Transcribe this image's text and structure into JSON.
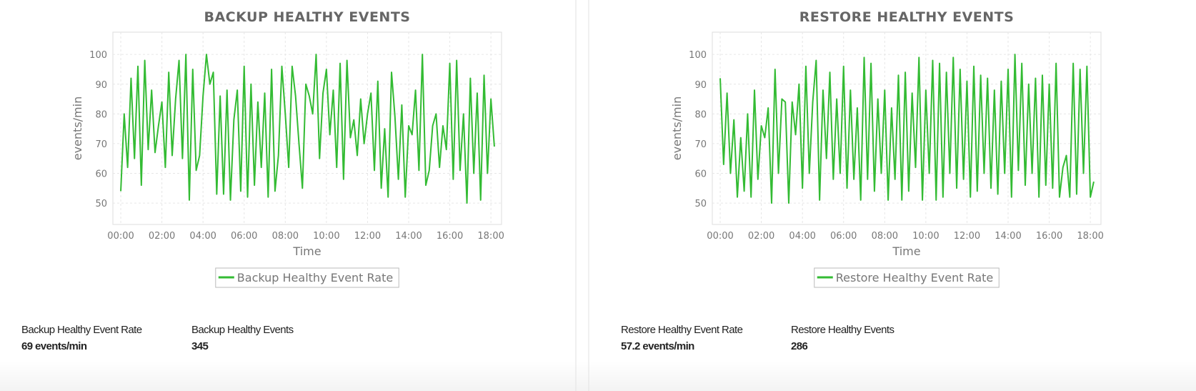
{
  "chart_data": [
    {
      "type": "line",
      "title": "BACKUP HEALTHY EVENTS",
      "xlabel": "Time",
      "ylabel": "events/min",
      "x": [
        0,
        10,
        20,
        30,
        40,
        50,
        60,
        70,
        80,
        90,
        100,
        110,
        120,
        130,
        140,
        150,
        160,
        170,
        180,
        190,
        200,
        210,
        220,
        230,
        240,
        250,
        260,
        270,
        280,
        290,
        300,
        310,
        320,
        330,
        340,
        350,
        360,
        370,
        380,
        390,
        400,
        410,
        420,
        430,
        440,
        450,
        460,
        470,
        480,
        490,
        500,
        510,
        520,
        530,
        540,
        550,
        560,
        570,
        580,
        590,
        600,
        610,
        620,
        630,
        640,
        650,
        660,
        670,
        680,
        690,
        700,
        710,
        720,
        730,
        740,
        750,
        760,
        770,
        780,
        790,
        800,
        810,
        820,
        830,
        840,
        850,
        860,
        870,
        880,
        890,
        900,
        910,
        920,
        930,
        940,
        950,
        960,
        970,
        980,
        990,
        1000,
        1010,
        1020,
        1030,
        1040,
        1050,
        1060,
        1070,
        1080,
        1090
      ],
      "series": [
        {
          "name": "Backup Healthy Event Rate",
          "color": "#33bb33",
          "values": [
            54,
            80,
            62,
            92,
            65,
            96,
            56,
            98,
            68,
            88,
            67,
            76,
            84,
            62,
            94,
            66,
            85,
            98,
            65,
            100,
            51,
            95,
            61,
            66,
            86,
            100,
            90,
            94,
            53,
            86,
            53,
            88,
            51,
            78,
            88,
            54,
            96,
            52,
            90,
            56,
            84,
            62,
            87,
            52,
            95,
            54,
            66,
            96,
            80,
            62,
            96,
            86,
            70,
            55,
            90,
            86,
            80,
            100,
            65,
            87,
            95,
            73,
            88,
            62,
            97,
            58,
            98,
            72,
            78,
            66,
            85,
            70,
            80,
            87,
            61,
            91,
            55,
            75,
            52,
            94,
            79,
            58,
            83,
            52,
            76,
            73,
            88,
            61,
            100,
            56,
            61,
            76,
            80,
            62,
            76,
            68,
            97,
            58,
            98,
            61,
            80,
            50,
            92,
            60,
            87,
            51,
            93,
            60,
            85,
            69
          ]
        }
      ],
      "xlim": [
        -23,
        1111
      ],
      "ylim": [
        42.8,
        107.5
      ],
      "xticks": [
        {
          "value": 0,
          "label": "00:00"
        },
        {
          "value": 120,
          "label": "02:00"
        },
        {
          "value": 240,
          "label": "04:00"
        },
        {
          "value": 360,
          "label": "06:00"
        },
        {
          "value": 480,
          "label": "08:00"
        },
        {
          "value": 600,
          "label": "10:00"
        },
        {
          "value": 720,
          "label": "12:00"
        },
        {
          "value": 840,
          "label": "14:00"
        },
        {
          "value": 960,
          "label": "16:00"
        },
        {
          "value": 1080,
          "label": "18:00"
        }
      ],
      "yticks": [
        50,
        60,
        70,
        80,
        90,
        100
      ],
      "grid": true,
      "legend": "bottom"
    },
    {
      "type": "line",
      "title": "RESTORE HEALTHY EVENTS",
      "xlabel": "Time",
      "ylabel": "events/min",
      "x": [
        0,
        10,
        20,
        30,
        40,
        50,
        60,
        70,
        80,
        90,
        100,
        110,
        120,
        130,
        140,
        150,
        160,
        170,
        180,
        190,
        200,
        210,
        220,
        230,
        240,
        250,
        260,
        270,
        280,
        290,
        300,
        310,
        320,
        330,
        340,
        350,
        360,
        370,
        380,
        390,
        400,
        410,
        420,
        430,
        440,
        450,
        460,
        470,
        480,
        490,
        500,
        510,
        520,
        530,
        540,
        550,
        560,
        570,
        580,
        590,
        600,
        610,
        620,
        630,
        640,
        650,
        660,
        670,
        680,
        690,
        700,
        710,
        720,
        730,
        740,
        750,
        760,
        770,
        780,
        790,
        800,
        810,
        820,
        830,
        840,
        850,
        860,
        870,
        880,
        890,
        900,
        910,
        920,
        930,
        940,
        950,
        960,
        970,
        980,
        990,
        1000,
        1010,
        1020,
        1030,
        1040,
        1050,
        1060,
        1070,
        1080,
        1090
      ],
      "series": [
        {
          "name": "Restore Healthy Event Rate",
          "color": "#33bb33",
          "values": [
            92,
            63,
            87,
            60,
            78,
            52,
            72,
            54,
            80,
            52,
            88,
            58,
            76,
            72,
            82,
            50,
            95,
            60,
            85,
            84,
            50,
            84,
            73,
            90,
            55,
            96,
            60,
            84,
            98,
            51,
            88,
            65,
            94,
            58,
            85,
            60,
            96,
            55,
            88,
            58,
            82,
            51,
            99,
            58,
            97,
            54,
            85,
            60,
            88,
            51,
            82,
            58,
            93,
            51,
            94,
            54,
            87,
            62,
            99,
            51,
            88,
            60,
            98,
            51,
            97,
            52,
            94,
            60,
            99,
            55,
            95,
            58,
            91,
            52,
            96,
            54,
            93,
            60,
            92,
            55,
            88,
            53,
            91,
            60,
            95,
            52,
            100,
            61,
            97,
            56,
            90,
            60,
            92,
            52,
            93,
            56,
            90,
            55,
            97,
            52,
            62,
            66,
            52,
            97,
            53,
            95,
            60,
            96,
            52,
            57.2
          ]
        }
      ],
      "xlim": [
        -23,
        1111
      ],
      "ylim": [
        42.8,
        107.5
      ],
      "xticks": [
        {
          "value": 0,
          "label": "00:00"
        },
        {
          "value": 120,
          "label": "02:00"
        },
        {
          "value": 240,
          "label": "04:00"
        },
        {
          "value": 360,
          "label": "06:00"
        },
        {
          "value": 480,
          "label": "08:00"
        },
        {
          "value": 600,
          "label": "10:00"
        },
        {
          "value": 720,
          "label": "12:00"
        },
        {
          "value": 840,
          "label": "14:00"
        },
        {
          "value": 960,
          "label": "16:00"
        },
        {
          "value": 1080,
          "label": "18:00"
        }
      ],
      "yticks": [
        50,
        60,
        70,
        80,
        90,
        100
      ],
      "grid": true,
      "legend": "bottom"
    }
  ],
  "stats": [
    [
      {
        "label": "Backup Healthy Event Rate",
        "value": "69 events/min"
      },
      {
        "label": "Backup Healthy Events",
        "value": "345"
      }
    ],
    [
      {
        "label": "Restore Healthy Event Rate",
        "value": "57.2 events/min"
      },
      {
        "label": "Restore Healthy Events",
        "value": "286"
      }
    ]
  ]
}
